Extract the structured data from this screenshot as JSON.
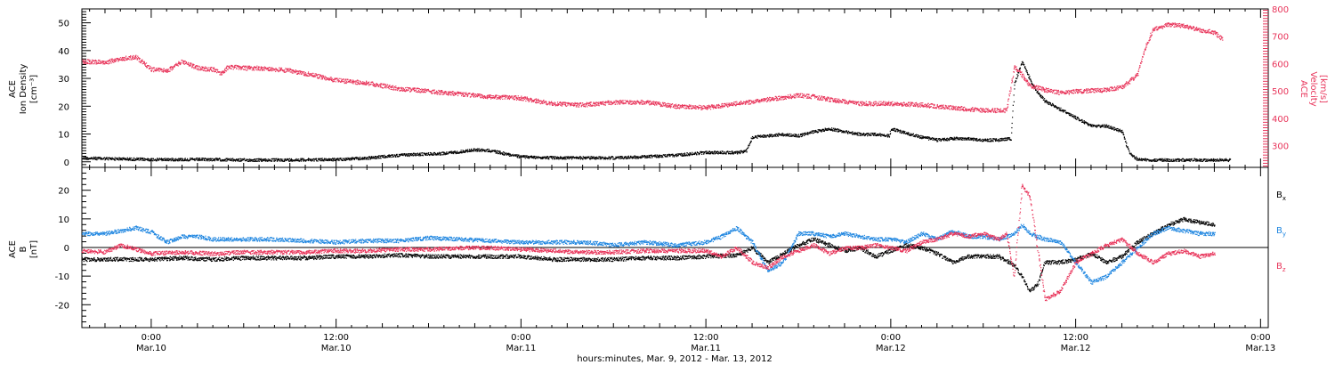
{
  "colors": {
    "black": "#000000",
    "red": "#e8345a",
    "blue": "#1f86e0"
  },
  "x_axis": {
    "title": "hours:minutes, Mar. 9, 2012 - Mar. 13, 2012",
    "range_hours": [
      19.5,
      96.5
    ],
    "ticks": [
      {
        "hours": 24,
        "time": "0:00",
        "date": "Mar.10"
      },
      {
        "hours": 36,
        "time": "12:00",
        "date": "Mar.10"
      },
      {
        "hours": 48,
        "time": "0:00",
        "date": "Mar.11"
      },
      {
        "hours": 60,
        "time": "12:00",
        "date": "Mar.11"
      },
      {
        "hours": 72,
        "time": "0:00",
        "date": "Mar.12"
      },
      {
        "hours": 84,
        "time": "12:00",
        "date": "Mar.12"
      },
      {
        "hours": 96,
        "time": "0:00",
        "date": "Mar.13"
      }
    ]
  },
  "chart_data": [
    {
      "type": "scatter",
      "panel": "top",
      "ylabel_left": [
        "ACE",
        "Ion Density",
        "[cm⁻³]"
      ],
      "ylabel_right": [
        "ACE",
        "Velocity",
        "[km/s]"
      ],
      "ylim_left": [
        -2,
        55
      ],
      "yticks_left": [
        0,
        10,
        20,
        30,
        40,
        50
      ],
      "ylim_right": [
        220,
        800
      ],
      "yticks_right": [
        300,
        400,
        500,
        600,
        700,
        800
      ],
      "series": [
        {
          "axis": "left",
          "color": "#000000",
          "x_hours": [
            19.5,
            22,
            24,
            26,
            28,
            30,
            32,
            34,
            36,
            38,
            40,
            42,
            43,
            44,
            45,
            46,
            47,
            48,
            49,
            50,
            52,
            54,
            56,
            58,
            60,
            62,
            62.6,
            63,
            64,
            65,
            66,
            67,
            68,
            69,
            70,
            71,
            71.9,
            72,
            73,
            74,
            75,
            76,
            77,
            78,
            79,
            79.8,
            80,
            80.5,
            81,
            81.5,
            82,
            83,
            84,
            85,
            86,
            87,
            87.5,
            88,
            89,
            90,
            91,
            92,
            93,
            94
          ],
          "y": [
            1.5,
            1.2,
            1.0,
            1.0,
            1.0,
            0.8,
            0.8,
            0.9,
            1.0,
            1.5,
            2.5,
            3.0,
            3.2,
            3.8,
            4.5,
            4.2,
            3.0,
            2.0,
            1.8,
            1.6,
            1.6,
            1.6,
            2.0,
            2.5,
            3.5,
            3.5,
            4.0,
            9.0,
            9.5,
            10.0,
            9.5,
            11.0,
            12.0,
            11.0,
            10.0,
            10.0,
            9.5,
            12.0,
            10.5,
            9.0,
            8.0,
            8.5,
            8.5,
            8.0,
            8.0,
            8.5,
            28.0,
            36.0,
            30.0,
            25.0,
            22.0,
            19.0,
            16.0,
            13.0,
            13.0,
            11.0,
            3.0,
            1.0,
            0.8,
            0.8,
            0.8,
            0.8,
            0.8,
            0.8
          ]
        },
        {
          "axis": "right",
          "color": "#e8345a",
          "x_hours": [
            19.5,
            21,
            22,
            23,
            24,
            25,
            26,
            27,
            28,
            28.5,
            29,
            30,
            31,
            32,
            33,
            34,
            36,
            38,
            40,
            42,
            44,
            46,
            48,
            50,
            52,
            54,
            56,
            58,
            60,
            62,
            64,
            66,
            67,
            68,
            70,
            72,
            74,
            76,
            78,
            79.5,
            80,
            80.5,
            81,
            82,
            83,
            84,
            86,
            87,
            88,
            88.5,
            89,
            90,
            91,
            92,
            93,
            93.5
          ],
          "y": [
            610,
            605,
            620,
            625,
            580,
            575,
            610,
            585,
            580,
            565,
            590,
            585,
            585,
            580,
            575,
            565,
            540,
            530,
            510,
            500,
            490,
            480,
            475,
            455,
            450,
            460,
            460,
            445,
            440,
            455,
            470,
            485,
            480,
            470,
            455,
            455,
            450,
            440,
            430,
            430,
            590,
            560,
            520,
            505,
            495,
            500,
            505,
            515,
            560,
            660,
            725,
            745,
            740,
            725,
            715,
            690
          ]
        }
      ]
    },
    {
      "type": "scatter",
      "panel": "bottom",
      "ylabel_left": [
        "ACE",
        "B",
        "[nT]"
      ],
      "ylim": [
        -28,
        28
      ],
      "yticks": [
        -20,
        -10,
        0,
        10,
        20
      ],
      "zero_line": true,
      "legend": "right",
      "series": [
        {
          "name": "Bx",
          "color": "#000000",
          "x_hours": [
            19.5,
            22,
            24,
            26,
            28,
            30,
            32,
            34,
            36,
            38,
            40,
            42,
            44,
            46,
            48,
            50,
            52,
            54,
            56,
            58,
            60,
            62,
            63,
            64,
            65,
            66,
            67,
            68,
            69,
            70,
            71,
            72,
            73,
            74,
            75,
            76,
            77,
            78,
            79,
            80,
            80.5,
            81,
            81.5,
            82,
            83,
            84,
            85,
            86,
            87,
            88,
            89,
            90,
            91,
            92,
            93
          ],
          "y": [
            -4,
            -4,
            -4,
            -3.5,
            -4,
            -3.5,
            -3.5,
            -3.5,
            -3,
            -3,
            -2.5,
            -3,
            -3,
            -3,
            -3,
            -4,
            -4,
            -4,
            -3.5,
            -3.5,
            -3,
            -2.5,
            0,
            -5,
            -2,
            1,
            3,
            1,
            -1,
            0,
            -3,
            -1,
            1,
            0,
            -2,
            -5,
            -3,
            -3,
            -3,
            -6,
            -10,
            -15,
            -13,
            -5,
            -5,
            -4,
            -2,
            -5,
            -3,
            2,
            5,
            8,
            10,
            9,
            8
          ]
        },
        {
          "name": "By",
          "color": "#1f86e0",
          "x_hours": [
            19.5,
            21,
            22,
            23,
            24,
            25,
            26,
            27,
            28,
            30,
            32,
            34,
            36,
            38,
            40,
            42,
            44,
            46,
            48,
            50,
            52,
            54,
            56,
            58,
            60,
            61,
            62,
            63,
            64,
            65,
            66,
            67,
            68,
            69,
            70,
            71,
            72,
            73,
            74,
            75,
            76,
            77,
            78,
            79,
            80,
            80.5,
            81,
            82,
            83,
            84,
            85,
            86,
            87,
            88,
            89,
            90,
            91,
            92,
            93
          ],
          "y": [
            5,
            5,
            6,
            7,
            5.5,
            2,
            4,
            4,
            3,
            3,
            3,
            2.5,
            2,
            2.5,
            2.5,
            3.5,
            3,
            2.5,
            2,
            2,
            2,
            1,
            2,
            1,
            2,
            4,
            7,
            2,
            -8,
            -5,
            5,
            5,
            4,
            5,
            4,
            3,
            3,
            2,
            5,
            3,
            6,
            4,
            4,
            3,
            5,
            8,
            5,
            3,
            2,
            -5,
            -12,
            -10,
            -5,
            0,
            5,
            7,
            6,
            5,
            5
          ]
        },
        {
          "name": "Bz",
          "color": "#e8345a",
          "x_hours": [
            19.5,
            21,
            22,
            24,
            26,
            28,
            30,
            32,
            34,
            36,
            38,
            40,
            42,
            44,
            46,
            48,
            50,
            52,
            54,
            56,
            58,
            60,
            61,
            62,
            63,
            64,
            65,
            66,
            67,
            68,
            69,
            70,
            71,
            72,
            73,
            74,
            75,
            76,
            77,
            78,
            79,
            79.5,
            80,
            80.5,
            81,
            82,
            83,
            84,
            85,
            86,
            87,
            88,
            89,
            90,
            91,
            92,
            93
          ],
          "y": [
            -1,
            -1.5,
            1,
            -2,
            -1.5,
            -2,
            -1.5,
            -1.5,
            -1.5,
            -1,
            -1,
            -0.5,
            -0.5,
            0,
            0,
            -0.5,
            -1,
            -1.5,
            -1.5,
            -1,
            -1,
            -1,
            -3,
            0,
            -5,
            -7,
            -3,
            -1,
            1,
            -2,
            0,
            0,
            1,
            0,
            -1,
            2,
            3,
            5,
            4,
            5,
            3,
            5,
            -10,
            22,
            18,
            -18,
            -15,
            -5,
            -2,
            1,
            3,
            -2,
            -5,
            -2,
            -1,
            -3,
            -2
          ]
        }
      ]
    }
  ]
}
